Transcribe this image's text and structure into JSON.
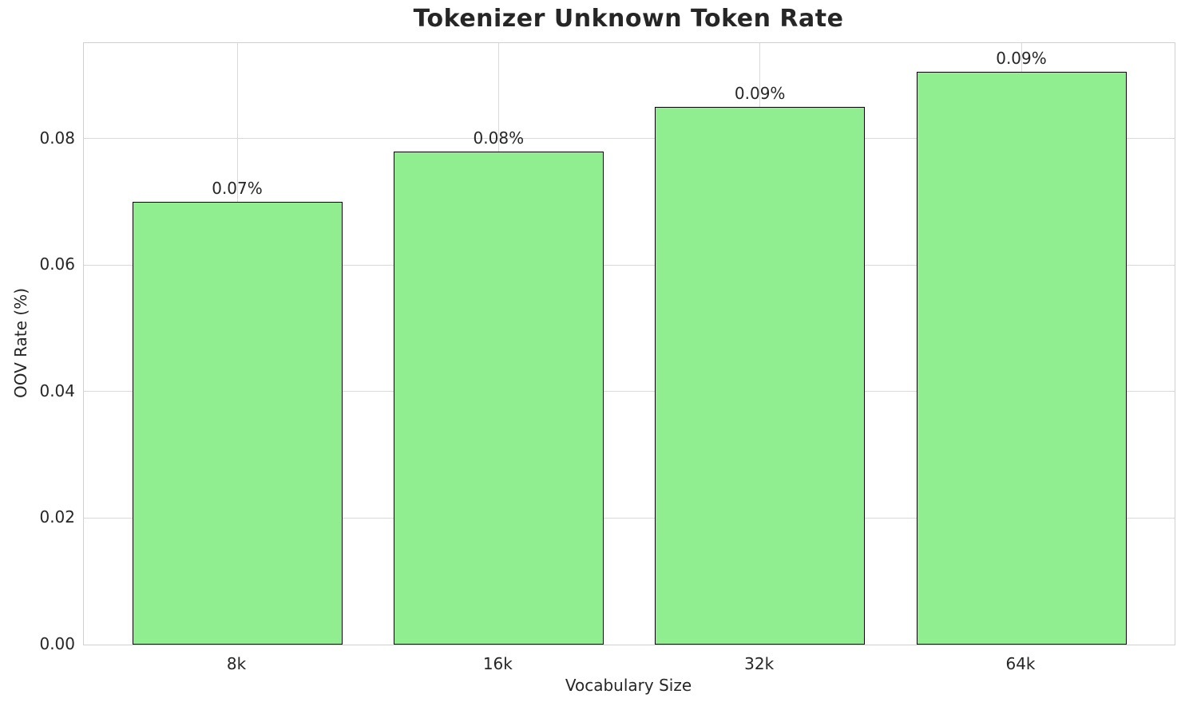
{
  "chart_data": {
    "type": "bar",
    "title": "Tokenizer Unknown Token Rate",
    "xlabel": "Vocabulary Size",
    "ylabel": "OOV Rate (%)",
    "categories": [
      "8k",
      "16k",
      "32k",
      "64k"
    ],
    "values": [
      0.07,
      0.078,
      0.085,
      0.0905
    ],
    "bar_labels": [
      "0.07%",
      "0.08%",
      "0.09%",
      "0.09%"
    ],
    "yticks": [
      0.0,
      0.02,
      0.04,
      0.06,
      0.08
    ],
    "ytick_labels": [
      "0.00",
      "0.02",
      "0.04",
      "0.06",
      "0.08"
    ],
    "ylim": [
      0,
      0.0951
    ],
    "grid": true,
    "legend": "none",
    "colors": {
      "bar_fill": "#90EE90",
      "bar_edge": "#000000",
      "grid": "#d9d9d9",
      "spine": "#d0d0d0",
      "text": "#262626",
      "background": "#ffffff"
    }
  }
}
